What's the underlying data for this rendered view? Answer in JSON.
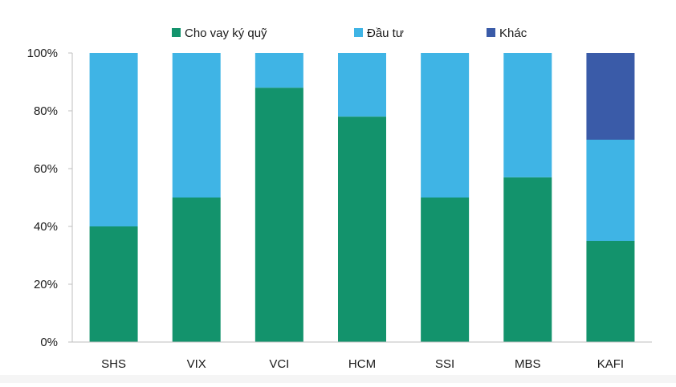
{
  "chart_data": {
    "type": "bar",
    "stacked": true,
    "categories": [
      "SHS",
      "VIX",
      "VCI",
      "HCM",
      "SSI",
      "MBS",
      "KAFI"
    ],
    "series": [
      {
        "name": "Cho vay ký quỹ",
        "color": "#13936c",
        "values": [
          40,
          50,
          88,
          78,
          50,
          57,
          35
        ]
      },
      {
        "name": "Đầu tư",
        "color": "#3fb4e5",
        "values": [
          60,
          50,
          12,
          22,
          50,
          43,
          35
        ]
      },
      {
        "name": "Khác",
        "color": "#3a5ba8",
        "values": [
          0,
          0,
          0,
          0,
          0,
          0,
          30
        ]
      }
    ],
    "yticks": [
      "0%",
      "20%",
      "40%",
      "60%",
      "80%",
      "100%"
    ],
    "ylim": [
      0,
      100
    ],
    "grid": false,
    "legend_position": "top"
  }
}
